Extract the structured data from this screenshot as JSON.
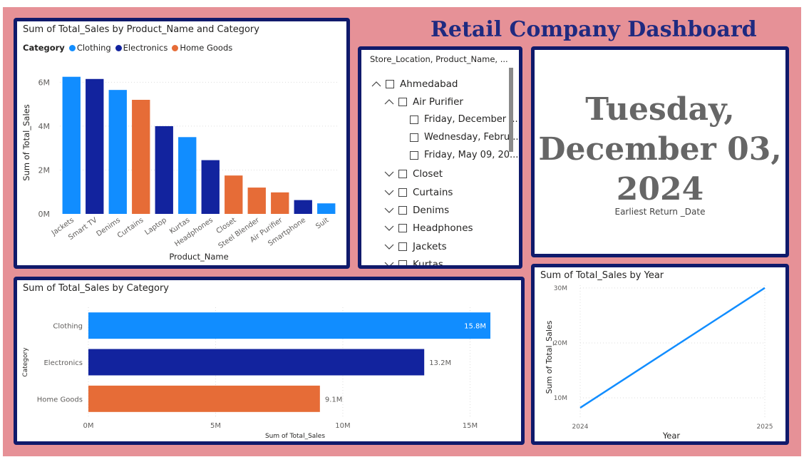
{
  "dashboard": {
    "title": "Retail Company Dashboard"
  },
  "colors": {
    "clothing": "#118dff",
    "electronics": "#12239e",
    "home_goods": "#e66c37",
    "frame": "#101a6b",
    "background": "#e69197"
  },
  "product_chart": {
    "title": "Sum of Total_Sales by Product_Name and Category",
    "legend_title": "Category",
    "legend": [
      "Clothing",
      "Electronics",
      "Home Goods"
    ]
  },
  "slicer": {
    "header": "Store_Location, Product_Name, ...",
    "items": [
      {
        "label": "Ahmedabad",
        "level": 0,
        "expanded": true
      },
      {
        "label": "Air Purifier",
        "level": 1,
        "expanded": true
      },
      {
        "label": "Friday, December ...",
        "level": 2
      },
      {
        "label": "Wednesday, Febru...",
        "level": 2
      },
      {
        "label": "Friday, May 09, 20...",
        "level": 2
      },
      {
        "label": "Closet",
        "level": 1,
        "expanded": false
      },
      {
        "label": "Curtains",
        "level": 1,
        "expanded": false
      },
      {
        "label": "Denims",
        "level": 1,
        "expanded": false
      },
      {
        "label": "Headphones",
        "level": 1,
        "expanded": false
      },
      {
        "label": "Jackets",
        "level": 1,
        "expanded": false
      },
      {
        "label": "Kurtas",
        "level": 1,
        "expanded": false
      }
    ]
  },
  "card": {
    "value": "Tuesday, December 03, 2024",
    "label": "Earliest Return _Date"
  },
  "category_chart": {
    "title": "Sum of Total_Sales by Category"
  },
  "year_chart": {
    "title": "Sum of Total_Sales by Year"
  },
  "chart_data": [
    {
      "type": "bar",
      "title": "Sum of Total_Sales by Product_Name and Category",
      "xlabel": "Product_Name",
      "ylabel": "Sum of Total_Sales",
      "ylim": [
        0,
        6500000
      ],
      "yticks": [
        "0M",
        "2M",
        "4M",
        "6M"
      ],
      "ytick_values": [
        0,
        2000000,
        4000000,
        6000000
      ],
      "grid": true,
      "categories": [
        "Jackets",
        "Smart TV",
        "Denims",
        "Curtains",
        "Laptop",
        "Kurtas",
        "Headphones",
        "Closet",
        "Steel Blender",
        "Air Purifier",
        "Smartphone",
        "Suit"
      ],
      "values": [
        6250000,
        6150000,
        5650000,
        5200000,
        4000000,
        3500000,
        2450000,
        1750000,
        1200000,
        980000,
        630000,
        480000
      ],
      "category_group": [
        "Clothing",
        "Electronics",
        "Clothing",
        "Home Goods",
        "Electronics",
        "Clothing",
        "Electronics",
        "Home Goods",
        "Home Goods",
        "Home Goods",
        "Electronics",
        "Clothing"
      ]
    },
    {
      "type": "bar",
      "orientation": "horizontal",
      "title": "Sum of Total_Sales by Category",
      "xlabel": "Sum of Total_Sales",
      "ylabel": "Category",
      "xlim": [
        0,
        15800000
      ],
      "xticks": [
        "0M",
        "5M",
        "10M",
        "15M"
      ],
      "xtick_values": [
        0,
        5000000,
        10000000,
        15000000
      ],
      "grid": true,
      "categories": [
        "Clothing",
        "Electronics",
        "Home Goods"
      ],
      "values": [
        15800000,
        13200000,
        9100000
      ],
      "data_labels": [
        "15.8M",
        "13.2M",
        "9.1M"
      ]
    },
    {
      "type": "line",
      "title": "Sum of Total_Sales by Year",
      "xlabel": "Year",
      "ylabel": "Sum of Total_Sales",
      "x": [
        "2024",
        "2025"
      ],
      "values": [
        8200000,
        30000000
      ],
      "ylim": [
        6500000,
        30500000
      ],
      "yticks": [
        "10M",
        "20M",
        "30M"
      ],
      "ytick_values": [
        10000000,
        20000000,
        30000000
      ],
      "grid": true
    }
  ]
}
